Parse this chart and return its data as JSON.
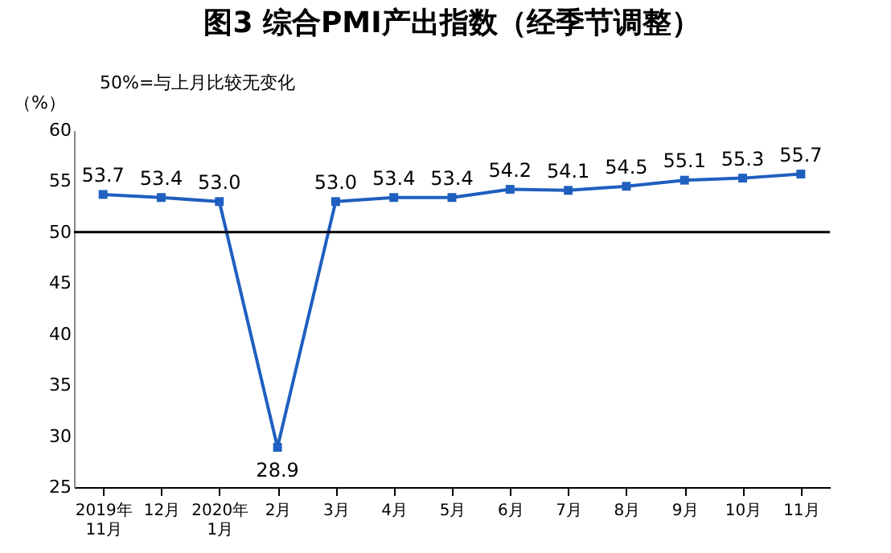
{
  "chart_data": {
    "type": "line",
    "title": "图3 综合PMI产出指数（经季节调整）",
    "ylabel": "（%）",
    "annotations": [
      "50%=与上月比较无变化"
    ],
    "categories": [
      "2019年\n11月",
      "12月",
      "2020年\n1月",
      "2月",
      "3月",
      "4月",
      "5月",
      "6月",
      "7月",
      "8月",
      "9月",
      "10月",
      "11月"
    ],
    "series": [
      {
        "color": "#1f5fbf",
        "values": [
          53.7,
          53.4,
          53.0,
          28.9,
          53.0,
          53.4,
          53.4,
          54.2,
          54.1,
          54.5,
          55.1,
          55.3,
          55.7
        ]
      }
    ],
    "value_labels": [
      "53.7",
      "53.4",
      "53.0",
      "28.9",
      "53.0",
      "53.4",
      "53.4",
      "54.2",
      "54.1",
      "54.5",
      "55.1",
      "55.3",
      "55.7"
    ],
    "ylim": [
      25,
      60
    ],
    "yticks": [
      25,
      30,
      35,
      40,
      45,
      50,
      55,
      60
    ],
    "grid": false,
    "marker": "square",
    "ref_lines": [
      {
        "axis": "y",
        "value": 50,
        "color": "#000000"
      }
    ]
  }
}
